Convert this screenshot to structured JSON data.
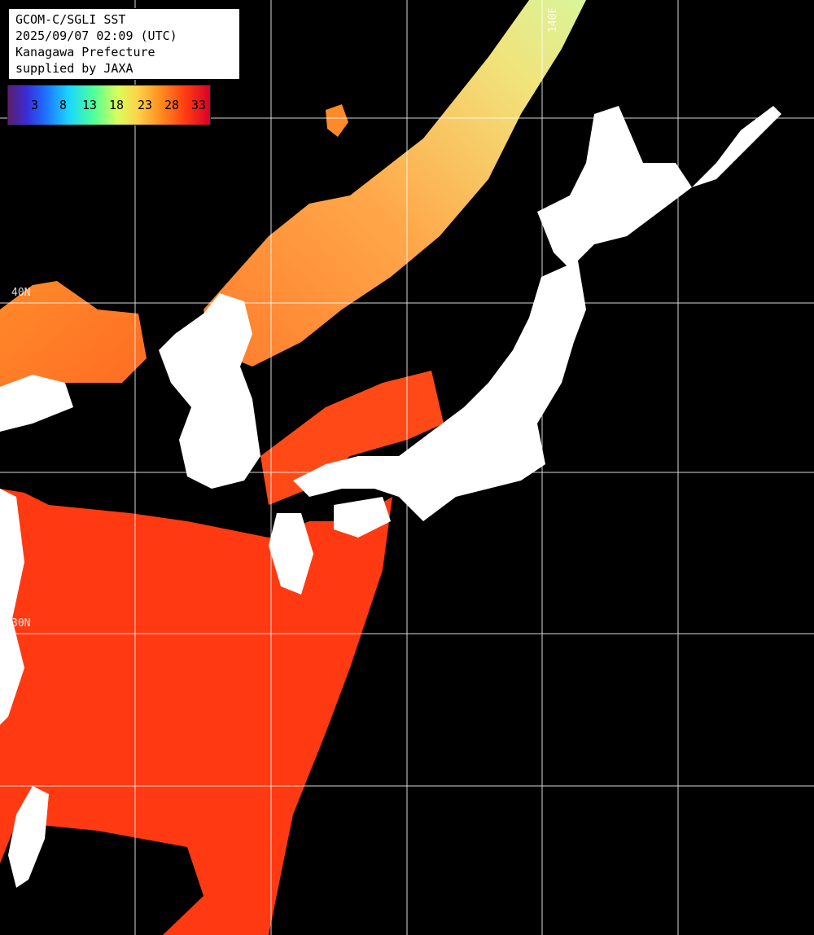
{
  "info": {
    "line1": "GCOM-C/SGLI SST",
    "line2": "2025/09/07 02:09 (UTC)",
    "line3": "Kanagawa Prefecture",
    "line4": "supplied by JAXA"
  },
  "legend": {
    "labels": [
      "3",
      "8",
      "13",
      "18",
      "23",
      "28",
      "33"
    ],
    "colors": [
      "#5a1f6e",
      "#3b2bd6",
      "#1e6cff",
      "#19d6ff",
      "#4dff9a",
      "#d7ff5a",
      "#ffd34a",
      "#ff8a1e",
      "#ff3a12",
      "#d8002a"
    ]
  },
  "grid_labels": {
    "lat_40": "40N",
    "lat_30": "30N",
    "lon_140": "140E"
  },
  "colors": {
    "background": "#000000",
    "land": "#ffffff",
    "grid": "#ffffff",
    "warm_sea": "#ff3a12",
    "mid_sea": "#ff8a2a",
    "cool_sea": "#f5d86a"
  }
}
